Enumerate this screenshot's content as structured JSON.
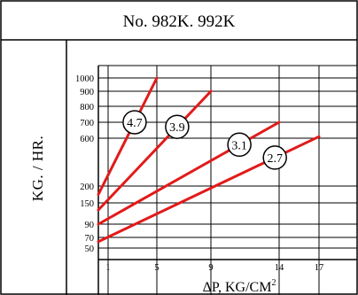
{
  "chart_data": {
    "type": "line",
    "title": "No. 982K. 992K",
    "ylabel": "KG. / HR.",
    "xlabel": "ΔP,  KG/CM",
    "xlabel_sup": "2",
    "x_ticks": [
      1,
      5,
      9,
      14,
      17
    ],
    "x_tick_labels": [
      "1",
      "5",
      "9",
      "14",
      "17"
    ],
    "y_ticks": [
      50,
      70,
      90,
      150,
      200,
      600,
      700,
      800,
      900,
      1000
    ],
    "y_tick_labels": [
      "50",
      "70",
      "90",
      "150",
      "200",
      "600",
      "700",
      "800",
      "900",
      "1000"
    ],
    "grid": true,
    "series": [
      {
        "name": "4.7",
        "color": "#e21a1a",
        "x": [
          0,
          5
        ],
        "y": [
          175,
          1000
        ]
      },
      {
        "name": "3.9",
        "color": "#e21a1a",
        "x": [
          0,
          9
        ],
        "y": [
          130,
          900
        ]
      },
      {
        "name": "3.1",
        "color": "#e21a1a",
        "x": [
          0,
          14
        ],
        "y": [
          90,
          700
        ]
      },
      {
        "name": "2.7",
        "color": "#e21a1a",
        "x": [
          0,
          17
        ],
        "y": [
          62,
          610
        ]
      }
    ]
  }
}
